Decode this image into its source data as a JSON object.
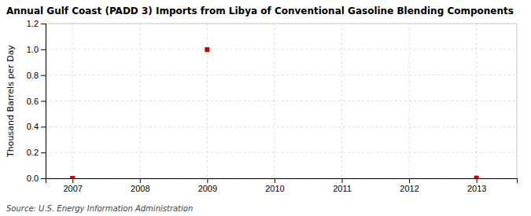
{
  "chart_data": {
    "type": "scatter",
    "title": "Annual Gulf Coast (PADD 3) Imports from Libya of Conventional Gasoline Blending Components",
    "ylabel": "Thousand Barrels per Day",
    "source": "Source: U.S. Energy Information Administration",
    "x": [
      2007,
      2009,
      2013
    ],
    "values": [
      0.0,
      0.998,
      0.002
    ],
    "color": "#CC0000",
    "marker": "square",
    "xlim": [
      2006.6,
      2013.6
    ],
    "ylim": [
      0.0,
      1.2
    ],
    "xticks": [
      2007,
      2008,
      2009,
      2010,
      2011,
      2012,
      2013
    ],
    "yticks": [
      {
        "value": 0.0,
        "label": "0.0"
      },
      0.2,
      0.4,
      0.6,
      0.8,
      {
        "value": 1.0,
        "label": "1.0"
      },
      1.2
    ],
    "grid": true
  }
}
